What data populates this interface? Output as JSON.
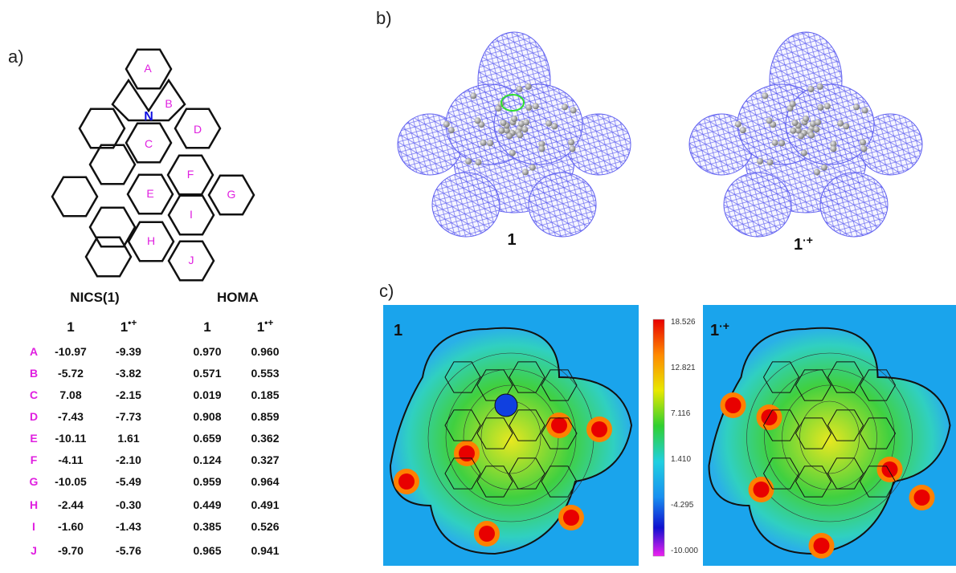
{
  "panels": {
    "a": "a)",
    "b": "b)",
    "c": "c)"
  },
  "structure": {
    "atom": "N",
    "rings": [
      "A",
      "B",
      "C",
      "D",
      "E",
      "F",
      "G",
      "H",
      "I",
      "J"
    ]
  },
  "table": {
    "group_headers": [
      "NICS(1)",
      "HOMA"
    ],
    "columns": [
      {
        "base": "1"
      },
      {
        "base": "1",
        "sup": "•+"
      },
      {
        "base": "1"
      },
      {
        "base": "1",
        "sup": "•+"
      }
    ],
    "rows": [
      [
        "A",
        "-10.97",
        "-9.39",
        "0.970",
        "0.960"
      ],
      [
        "B",
        "-5.72",
        "-3.82",
        "0.571",
        "0.553"
      ],
      [
        "C",
        "7.08",
        "-2.15",
        "0.019",
        "0.185"
      ],
      [
        "D",
        "-7.43",
        "-7.73",
        "0.908",
        "0.859"
      ],
      [
        "E",
        "-10.11",
        "1.61",
        "0.659",
        "0.362"
      ],
      [
        "F",
        "-4.11",
        "-2.10",
        "0.124",
        "0.327"
      ],
      [
        "G",
        "-10.05",
        "-5.49",
        "0.959",
        "0.964"
      ],
      [
        "H",
        "-2.44",
        "-0.30",
        "0.449",
        "0.491"
      ],
      [
        "I",
        "-1.60",
        "-1.43",
        "0.385",
        "0.526"
      ],
      [
        "J",
        "-9.70",
        "-5.76",
        "0.965",
        "0.941"
      ]
    ]
  },
  "mesh_labels": [
    {
      "base": "1"
    },
    {
      "base": "1",
      "sup": "·+"
    }
  ],
  "map_labels": [
    {
      "base": "1"
    },
    {
      "base": "1",
      "sup": "·+"
    }
  ],
  "colorbar": {
    "labels": [
      "18.526",
      "12.821",
      "7.116",
      "1.410",
      "-4.295",
      "-10.000"
    ]
  }
}
